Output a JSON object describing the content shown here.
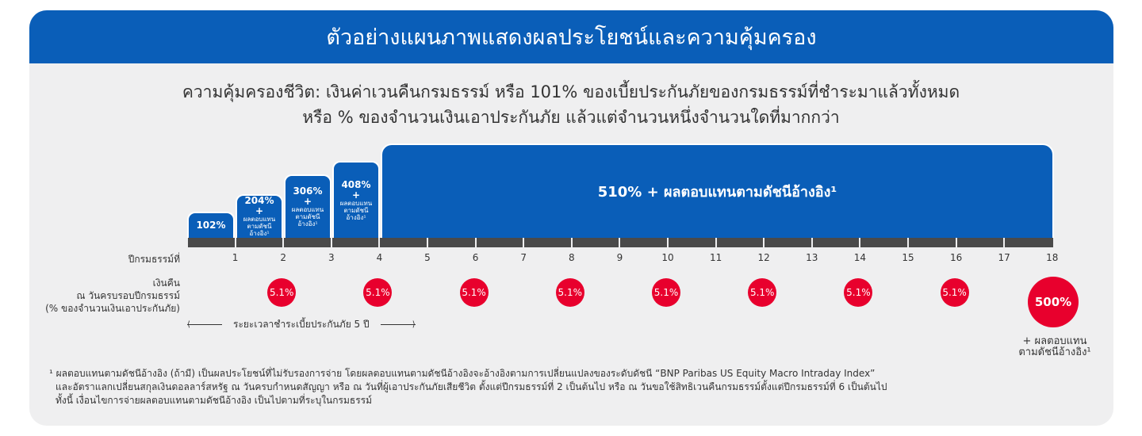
{
  "title": "ตัวอย่างแผนภาพแสดงผลประโยชน์และความคุ้มครอง",
  "subtitle_line1": "ความคุ้มครองชีวิต: เงินค่าเวนคืนกรมธรรม์ หรือ 101% ของเบี้ยประกันภัยของกรมธรรม์ที่ชำระมาแล้วทั้งหมด",
  "subtitle_line2": "หรือ % ของจำนวนเงินเอาประกันภัย แล้วแต่จำนวนหนึ่งจำนวนใดที่มากกว่า",
  "bars": [
    {
      "pct": "102%"
    },
    {
      "pct": "204%",
      "plus": "+",
      "note1": "ผลตอบแทน",
      "note2": "ตามดัชนีอ้างอิง¹"
    },
    {
      "pct": "306%",
      "plus": "+",
      "note1": "ผลตอบแทน",
      "note2": "ตามดัชนีอ้างอิง¹"
    },
    {
      "pct": "408%",
      "plus": "+",
      "note1": "ผลตอบแทน",
      "note2": "ตามดัชนีอ้างอิง¹"
    },
    {
      "pct": "510% + ผลตอบแทนตามดัชนีอ้างอิง¹"
    }
  ],
  "year_label": "ปีกรมธรรม์ที่",
  "years": [
    "1",
    "2",
    "3",
    "4",
    "5",
    "6",
    "7",
    "8",
    "9",
    "10",
    "11",
    "12",
    "13",
    "14",
    "15",
    "16",
    "17",
    "18"
  ],
  "cashback_label": [
    "เงินคืน",
    "ณ วันครบรอบปีกรมธรรม์",
    "(% ของจำนวนเงินเอาประกันภัย)"
  ],
  "cashback": [
    {
      "year": 2,
      "value": "5.1%"
    },
    {
      "year": 4,
      "value": "5.1%"
    },
    {
      "year": 6,
      "value": "5.1%"
    },
    {
      "year": 8,
      "value": "5.1%"
    },
    {
      "year": 10,
      "value": "5.1%"
    },
    {
      "year": 12,
      "value": "5.1%"
    },
    {
      "year": 14,
      "value": "5.1%"
    },
    {
      "year": 16,
      "value": "5.1%"
    }
  ],
  "maturity": {
    "value": "500%",
    "note1": "+ ผลตอบแทน",
    "note2": "ตามดัชนีอ้างอิง¹"
  },
  "premium_period": "ระยะเวลาชำระเบี้ยประกันภัย 5 ปี",
  "footnote": [
    "¹ ผลตอบแทนตามดัชนีอ้างอิง (ถ้ามี) เป็นผลประโยชน์ที่ไม่รับรองการจ่าย โดยผลตอบแทนตามดัชนีอ้างอิงจะอ้างอิงตามการเปลี่ยนแปลงของระดับดัชนี “BNP Paribas US Equity Macro Intraday Index”",
    "และอัตราแลกเปลี่ยนสกุลเงินดอลลาร์สหรัฐ ณ วันครบกำหนดสัญญา หรือ ณ วันที่ผู้เอาประกันภัยเสียชีวิต ตั้งแต่ปีกรมธรรม์ที่ 2 เป็นต้นไป หรือ ณ วันขอใช้สิทธิเวนคืนกรมธรรม์ตั้งแต่ปีกรมธรรม์ที่ 6 เป็นต้นไป",
    "ทั้งนี้ เงื่อนไขการจ่ายผลตอบแทนตามดัชนีอ้างอิง เป็นไปตามที่ระบุในกรมธรรม์"
  ],
  "colors": {
    "blue": "#0a5eb8",
    "red": "#e8002d",
    "track": "#4a4a4a"
  }
}
